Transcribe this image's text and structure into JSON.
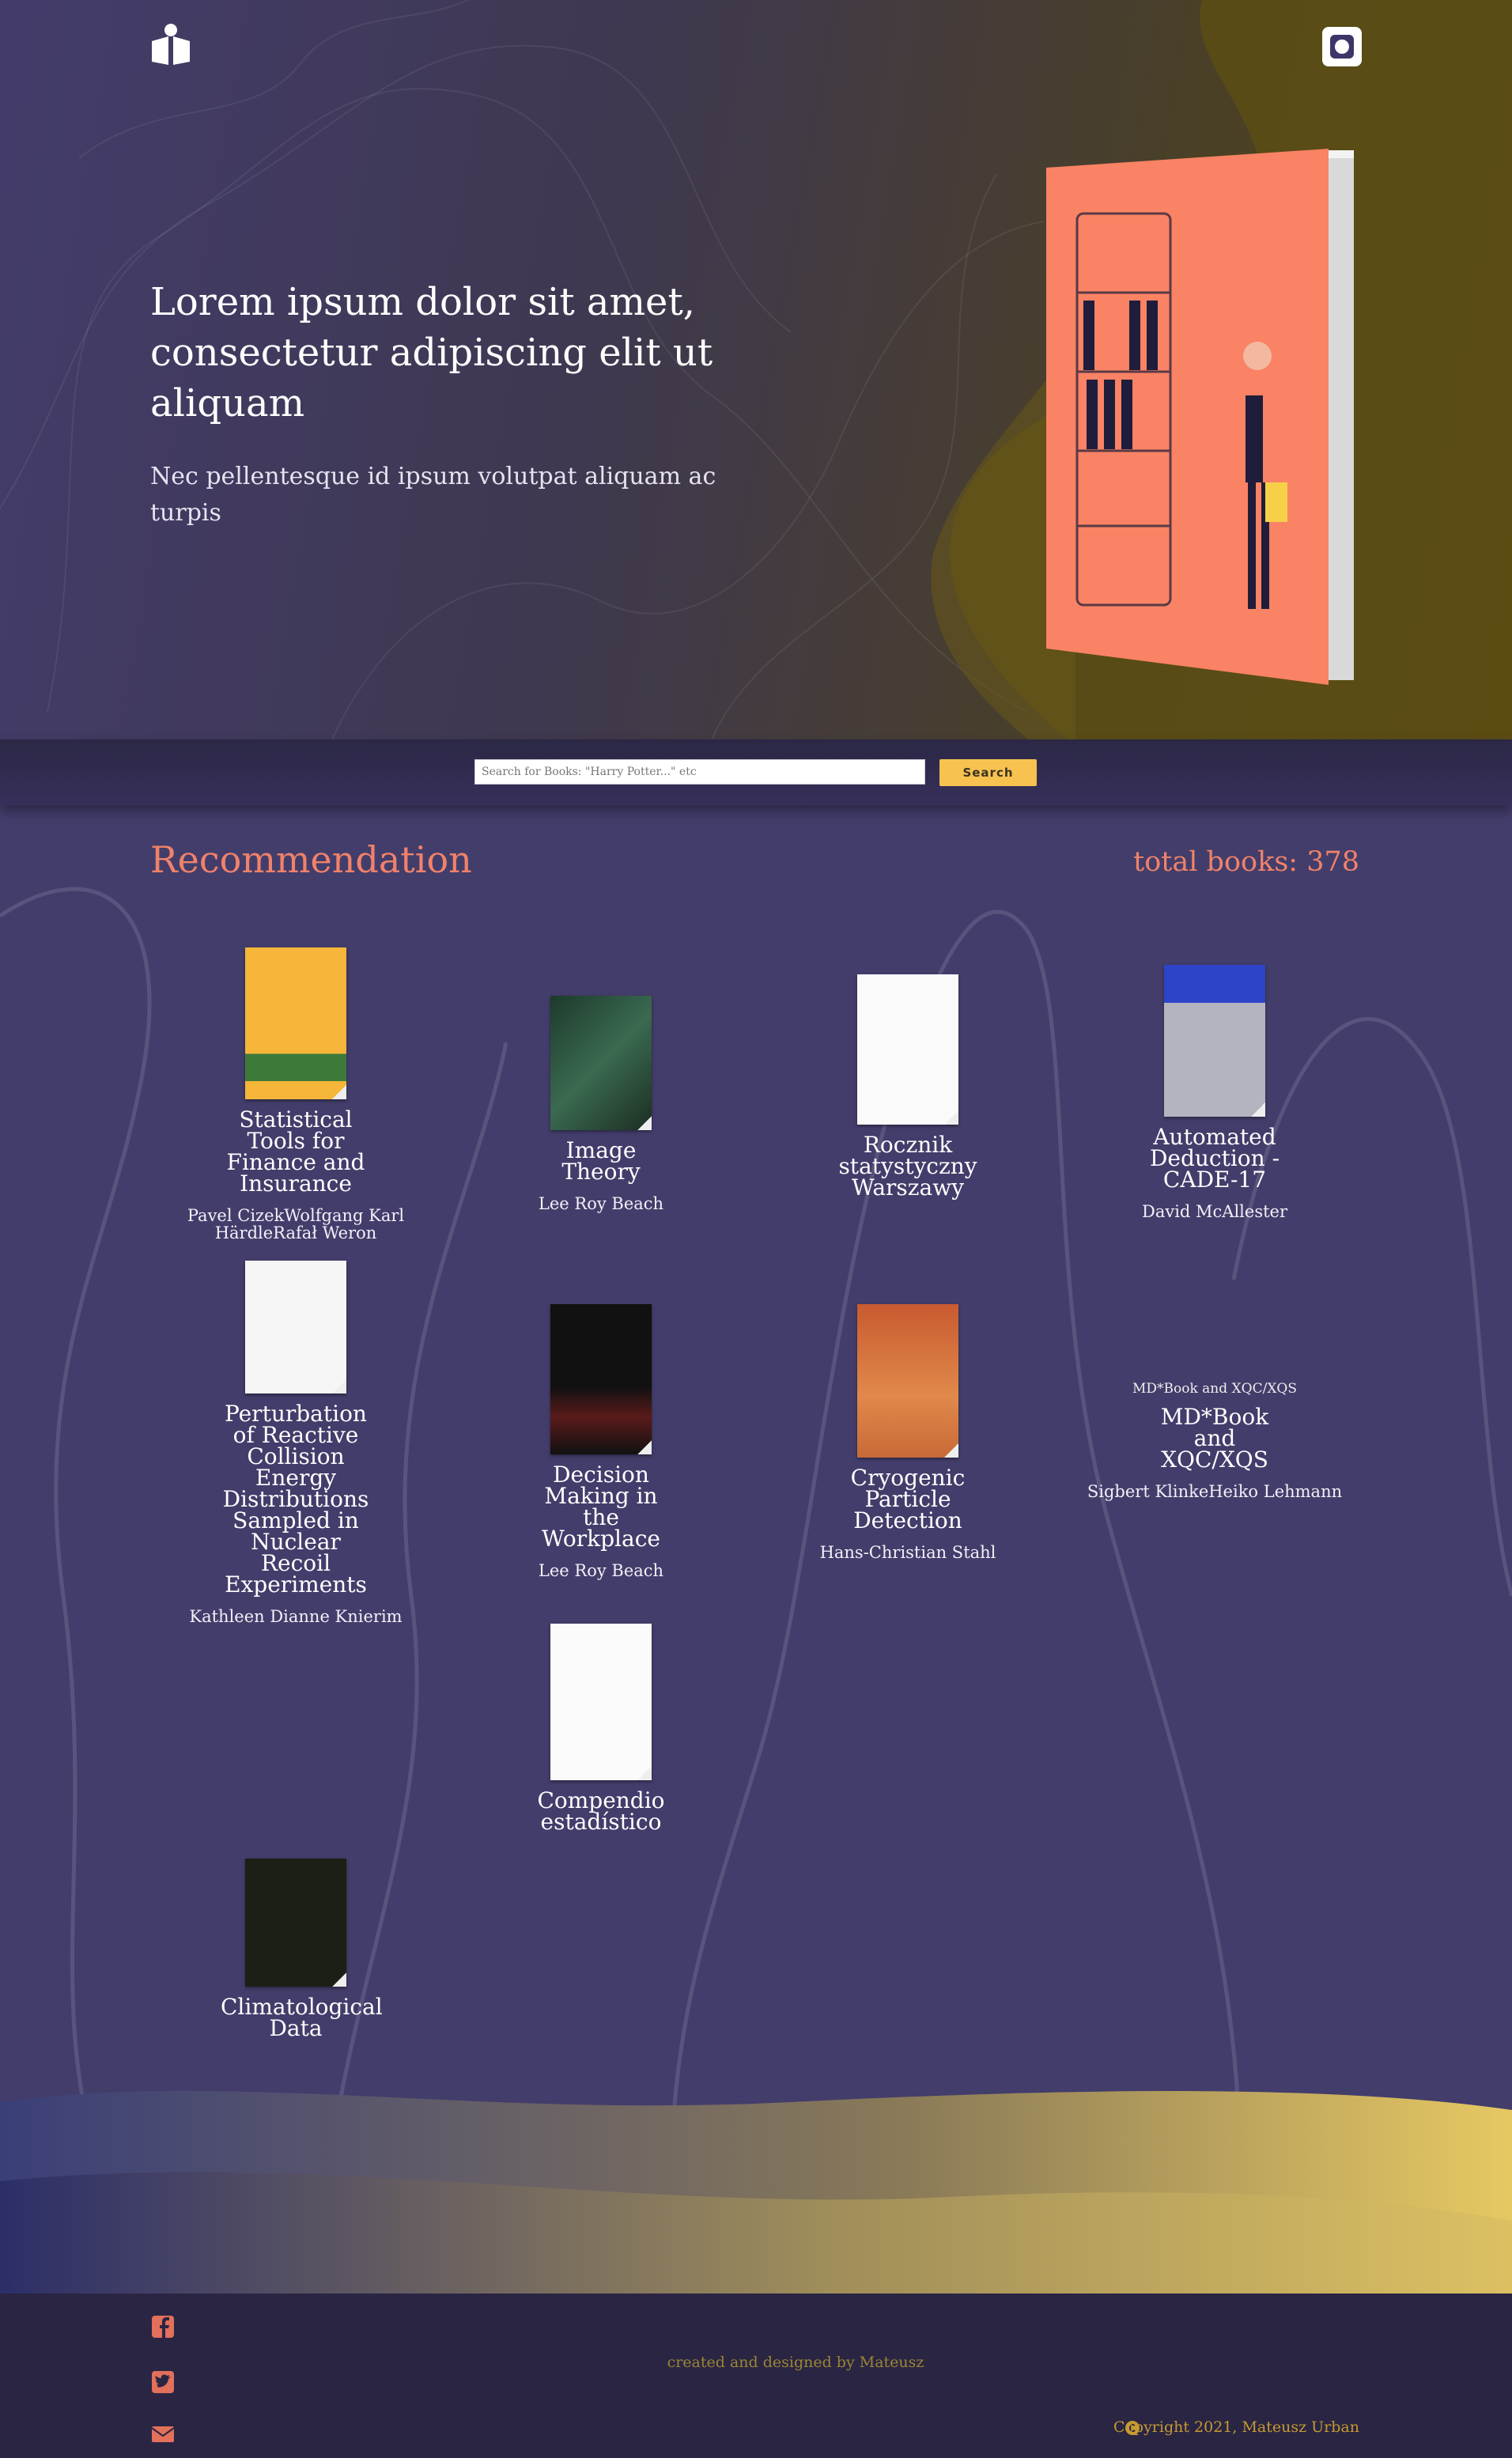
{
  "header": {
    "title": "Lorem ipsum dolor sit amet, consectetur adipiscing elit ut aliquam",
    "subtitle": "Nec pellentesque id ipsum volutpat aliquam ac turpis"
  },
  "search": {
    "placeholder": "Search for Books: \"Harry Potter...\" etc",
    "button": "Search"
  },
  "recommendation": {
    "title": "Recommendation",
    "total": "total books: 378",
    "books": [
      {
        "title": "Statistical Tools for Finance and Insurance",
        "authors": "Pavel CizekWolfgang Karl HärdleRafał Weron"
      },
      {
        "title": "Image Theory",
        "authors": "Lee Roy Beach"
      },
      {
        "title": "Rocznik statystyczny Warszawy"
      },
      {
        "title": "Automated Deduction - CADE-17",
        "authors": "David McAllester"
      },
      {
        "title": "Perturbation of Reactive Collision Energy Distributions Sampled in Nuclear Recoil Experiments",
        "authors": "Kathleen Dianne Knierim"
      },
      {
        "title": "Decision Making in the Workplace",
        "authors": "Lee Roy Beach"
      },
      {
        "title": "Cryogenic Particle Detection",
        "authors": "Hans-Christian Stahl"
      },
      {
        "title": "MD*Book and XQC/XQS",
        "image_alt": "MD*Book and XQC/XQS",
        "authors": "Sigbert KlinkeHeiko Lehmann"
      },
      {
        "title": "Compendio estadístico"
      },
      {
        "title": "Climatological Data"
      }
    ]
  },
  "footer": {
    "credit": "created and designed by Mateusz",
    "copyright": "Copyright 2021, Mateusz Urban"
  }
}
